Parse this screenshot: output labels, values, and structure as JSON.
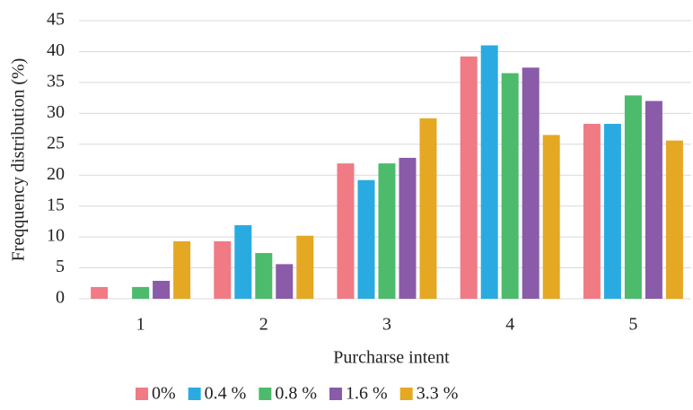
{
  "chart_data": {
    "type": "bar",
    "x_label": "Purcharse intent",
    "y_label": "Freqquency distribution (%)",
    "categories": [
      "1",
      "2",
      "3",
      "4",
      "5"
    ],
    "series": [
      {
        "name": "0%",
        "color": "#f07b84",
        "values": [
          1.9,
          9.3,
          21.9,
          39.2,
          28.3
        ]
      },
      {
        "name": "0.4 %",
        "color": "#29abe2",
        "values": [
          0,
          11.9,
          19.2,
          41,
          28.3
        ]
      },
      {
        "name": "0.8 %",
        "color": "#4cbb6c",
        "values": [
          1.9,
          7.4,
          21.9,
          36.5,
          32.9
        ]
      },
      {
        "name": "1.6 %",
        "color": "#8a5ba8",
        "values": [
          2.9,
          5.6,
          22.8,
          37.4,
          32
        ]
      },
      {
        "name": "3.3 %",
        "color": "#e5a823",
        "values": [
          9.3,
          10.2,
          29.2,
          26.5,
          25.6
        ]
      }
    ],
    "ylim": [
      0,
      45
    ],
    "yticks": [
      0,
      5,
      10,
      15,
      20,
      25,
      30,
      35,
      40,
      45
    ],
    "grid": true
  }
}
